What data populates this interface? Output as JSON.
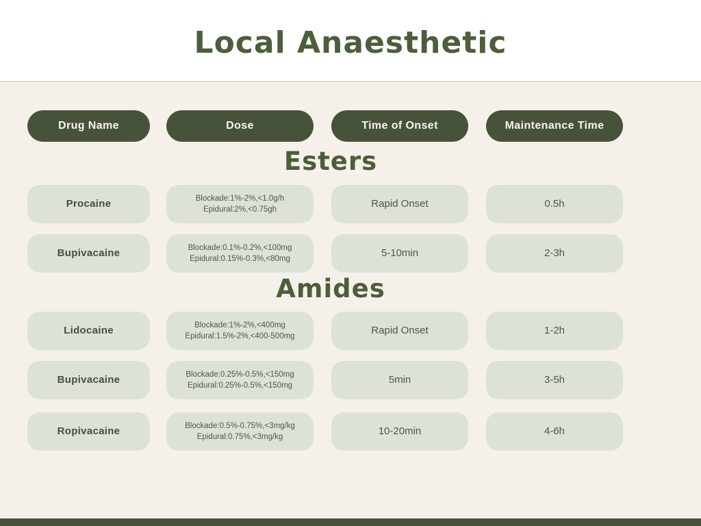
{
  "page": {
    "title": "Local Anaesthetic"
  },
  "table": {
    "headers": [
      {
        "label": "Drug Name"
      },
      {
        "label": "Dose"
      },
      {
        "label": "Time of Onset"
      },
      {
        "label": "Maintenance Time"
      }
    ],
    "sections": [
      {
        "heading": "Esters",
        "rows": [
          {
            "drug": "Procaine",
            "dose_line1": "Blockade:1%-2%,<1.0g/h",
            "dose_line2": "Epidural:2%,<0.75gh",
            "onset": "Rapid Onset",
            "maintenance": "0.5h"
          },
          {
            "drug": "Bupivacaine",
            "dose_line1": "Blockade:0.1%-0.2%,<100mg",
            "dose_line2": "Epidural:0.15%-0.3%,<80mg",
            "onset": "5-10min",
            "maintenance": "2-3h"
          }
        ]
      },
      {
        "heading": "Amides",
        "rows": [
          {
            "drug": "Lidocaine",
            "dose_line1": "Blockade:1%-2%,<400mg",
            "dose_line2": "Epidural:1.5%-2%,<400-500mg",
            "onset": "Rapid Onset",
            "maintenance": "1-2h"
          },
          {
            "drug": "Bupivacaine",
            "dose_line1": "Blockade:0.25%-0.5%,<150mg",
            "dose_line2": "Epidural:0.25%-0.5%,<150mg",
            "onset": "5min",
            "maintenance": "3-5h"
          },
          {
            "drug": "Ropivacaine",
            "dose_line1": "Blockade:0.5%-0.75%,<3mg/kg",
            "dose_line2": "Epidural:0.75%,<3mg/kg",
            "onset": "10-20min",
            "maintenance": "4-6h"
          }
        ]
      }
    ]
  },
  "colors": {
    "header_pill": "#47523B",
    "row_pill": "#DDE2D9",
    "heading_text": "#4C5E3A",
    "body_text": "#4B5647",
    "background": "#F5F1EA",
    "top_background": "#FFFFFF",
    "divider": "#DCDCDA",
    "footer_bar": "#47523B"
  }
}
